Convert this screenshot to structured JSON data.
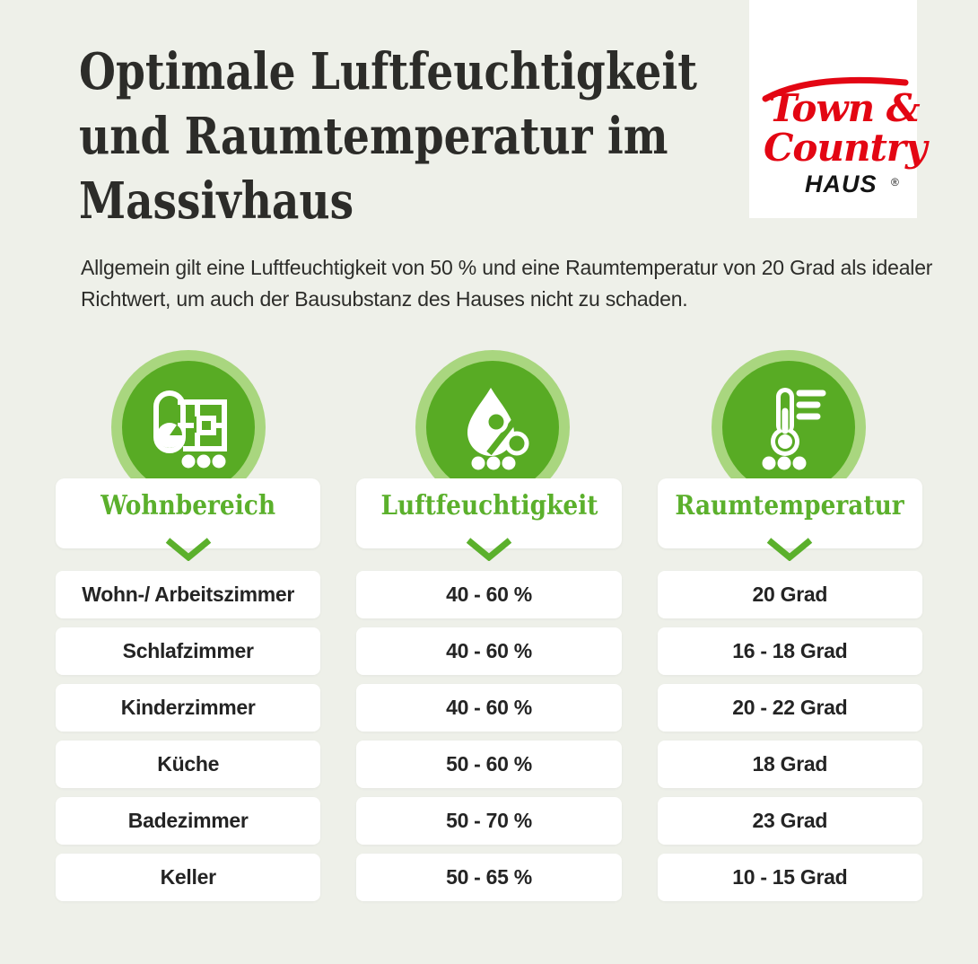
{
  "colors": {
    "background": "#eef0e9",
    "accent_green": "#5bb02c",
    "circle_green": "#58ab24",
    "circle_ring_green": "#a9d67f",
    "text_dark": "#2c2c29",
    "card_white": "#ffffff",
    "logo_red": "#e30613"
  },
  "header": {
    "title_lines": [
      "Optimale Luftfeuchtigkeit",
      "und Raumtemperatur im",
      "Massivhaus"
    ],
    "subtitle": "Allgemein gilt eine Luftfeuchtigkeit von 50 % und eine Raumtemperatur von 20 Grad als idealer Richtwert, um auch der Bausubstanz des Hauses nicht zu schaden."
  },
  "logo": {
    "line1": "Town &",
    "line2": "Country",
    "line3": "HAUS",
    "registered": "®"
  },
  "column_icons": [
    "blueprint-floorplan-icon",
    "humidity-drop-percent-icon",
    "thermometer-icon"
  ],
  "chart_data": {
    "type": "table",
    "title": "Optimale Luftfeuchtigkeit und Raumtemperatur im Massivhaus",
    "columns": [
      "Wohnbereich",
      "Luftfeuchtigkeit",
      "Raumtemperatur"
    ],
    "rows": [
      [
        "Wohn-/ Arbeitszimmer",
        "40 - 60 %",
        "20 Grad"
      ],
      [
        "Schlafzimmer",
        "40 - 60 %",
        "16 - 18 Grad"
      ],
      [
        "Kinderzimmer",
        "40 - 60 %",
        "20 - 22 Grad"
      ],
      [
        "Küche",
        "50 - 60 %",
        "18 Grad"
      ],
      [
        "Badezimmer",
        "50 - 70 %",
        "23 Grad"
      ],
      [
        "Keller",
        "50 - 65 %",
        "10 - 15 Grad"
      ]
    ]
  }
}
